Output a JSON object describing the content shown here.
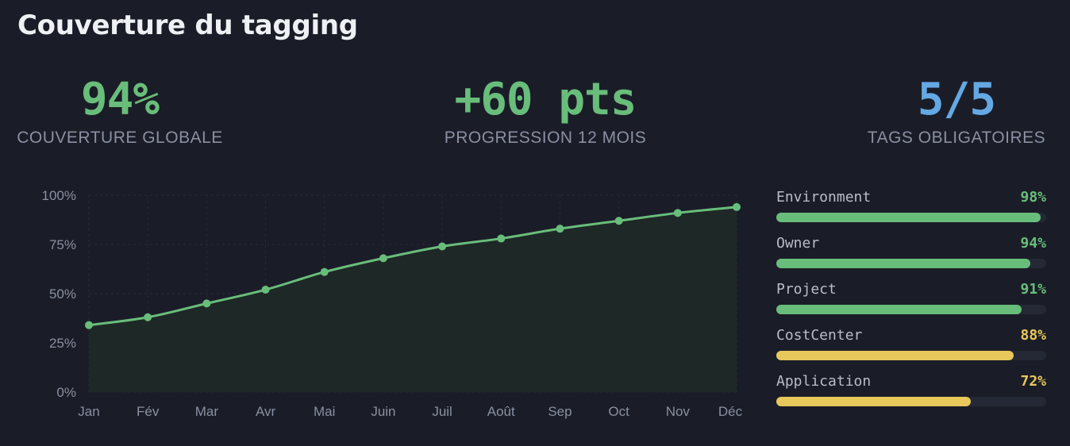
{
  "title": "Couverture du tagging",
  "colors": {
    "green": "#69bd7b",
    "blue": "#64a8e4",
    "yellow": "#e8c75b"
  },
  "kpis": [
    {
      "value": "94%",
      "label": "COUVERTURE GLOBALE",
      "color": "#69bd7b"
    },
    {
      "value": "+60 pts",
      "label": "PROGRESSION 12 MOIS",
      "color": "#69bd7b"
    },
    {
      "value": "5/5",
      "label": "TAGS OBLIGATOIRES",
      "color": "#64a8e4"
    }
  ],
  "chart_data": {
    "type": "area",
    "categories": [
      "Jan",
      "Fév",
      "Mar",
      "Avr",
      "Mai",
      "Juin",
      "Juil",
      "Août",
      "Sep",
      "Oct",
      "Nov",
      "Déc"
    ],
    "values": [
      34,
      38,
      45,
      52,
      61,
      68,
      74,
      78,
      83,
      87,
      91,
      94
    ],
    "ylim": [
      0,
      100
    ],
    "yticks": [
      "0%",
      "25%",
      "50%",
      "75%",
      "100%"
    ],
    "ytick_values": [
      0,
      25,
      50,
      75,
      100
    ],
    "grid": true,
    "title": "",
    "xlabel": "",
    "ylabel": ""
  },
  "tags": [
    {
      "name": "Environment",
      "pct_label": "98%",
      "pct": 98,
      "color": "#69bd7b"
    },
    {
      "name": "Owner",
      "pct_label": "94%",
      "pct": 94,
      "color": "#69bd7b"
    },
    {
      "name": "Project",
      "pct_label": "91%",
      "pct": 91,
      "color": "#69bd7b"
    },
    {
      "name": "CostCenter",
      "pct_label": "88%",
      "pct": 88,
      "color": "#e8c75b"
    },
    {
      "name": "Application",
      "pct_label": "72%",
      "pct": 72,
      "color": "#e8c75b"
    }
  ]
}
